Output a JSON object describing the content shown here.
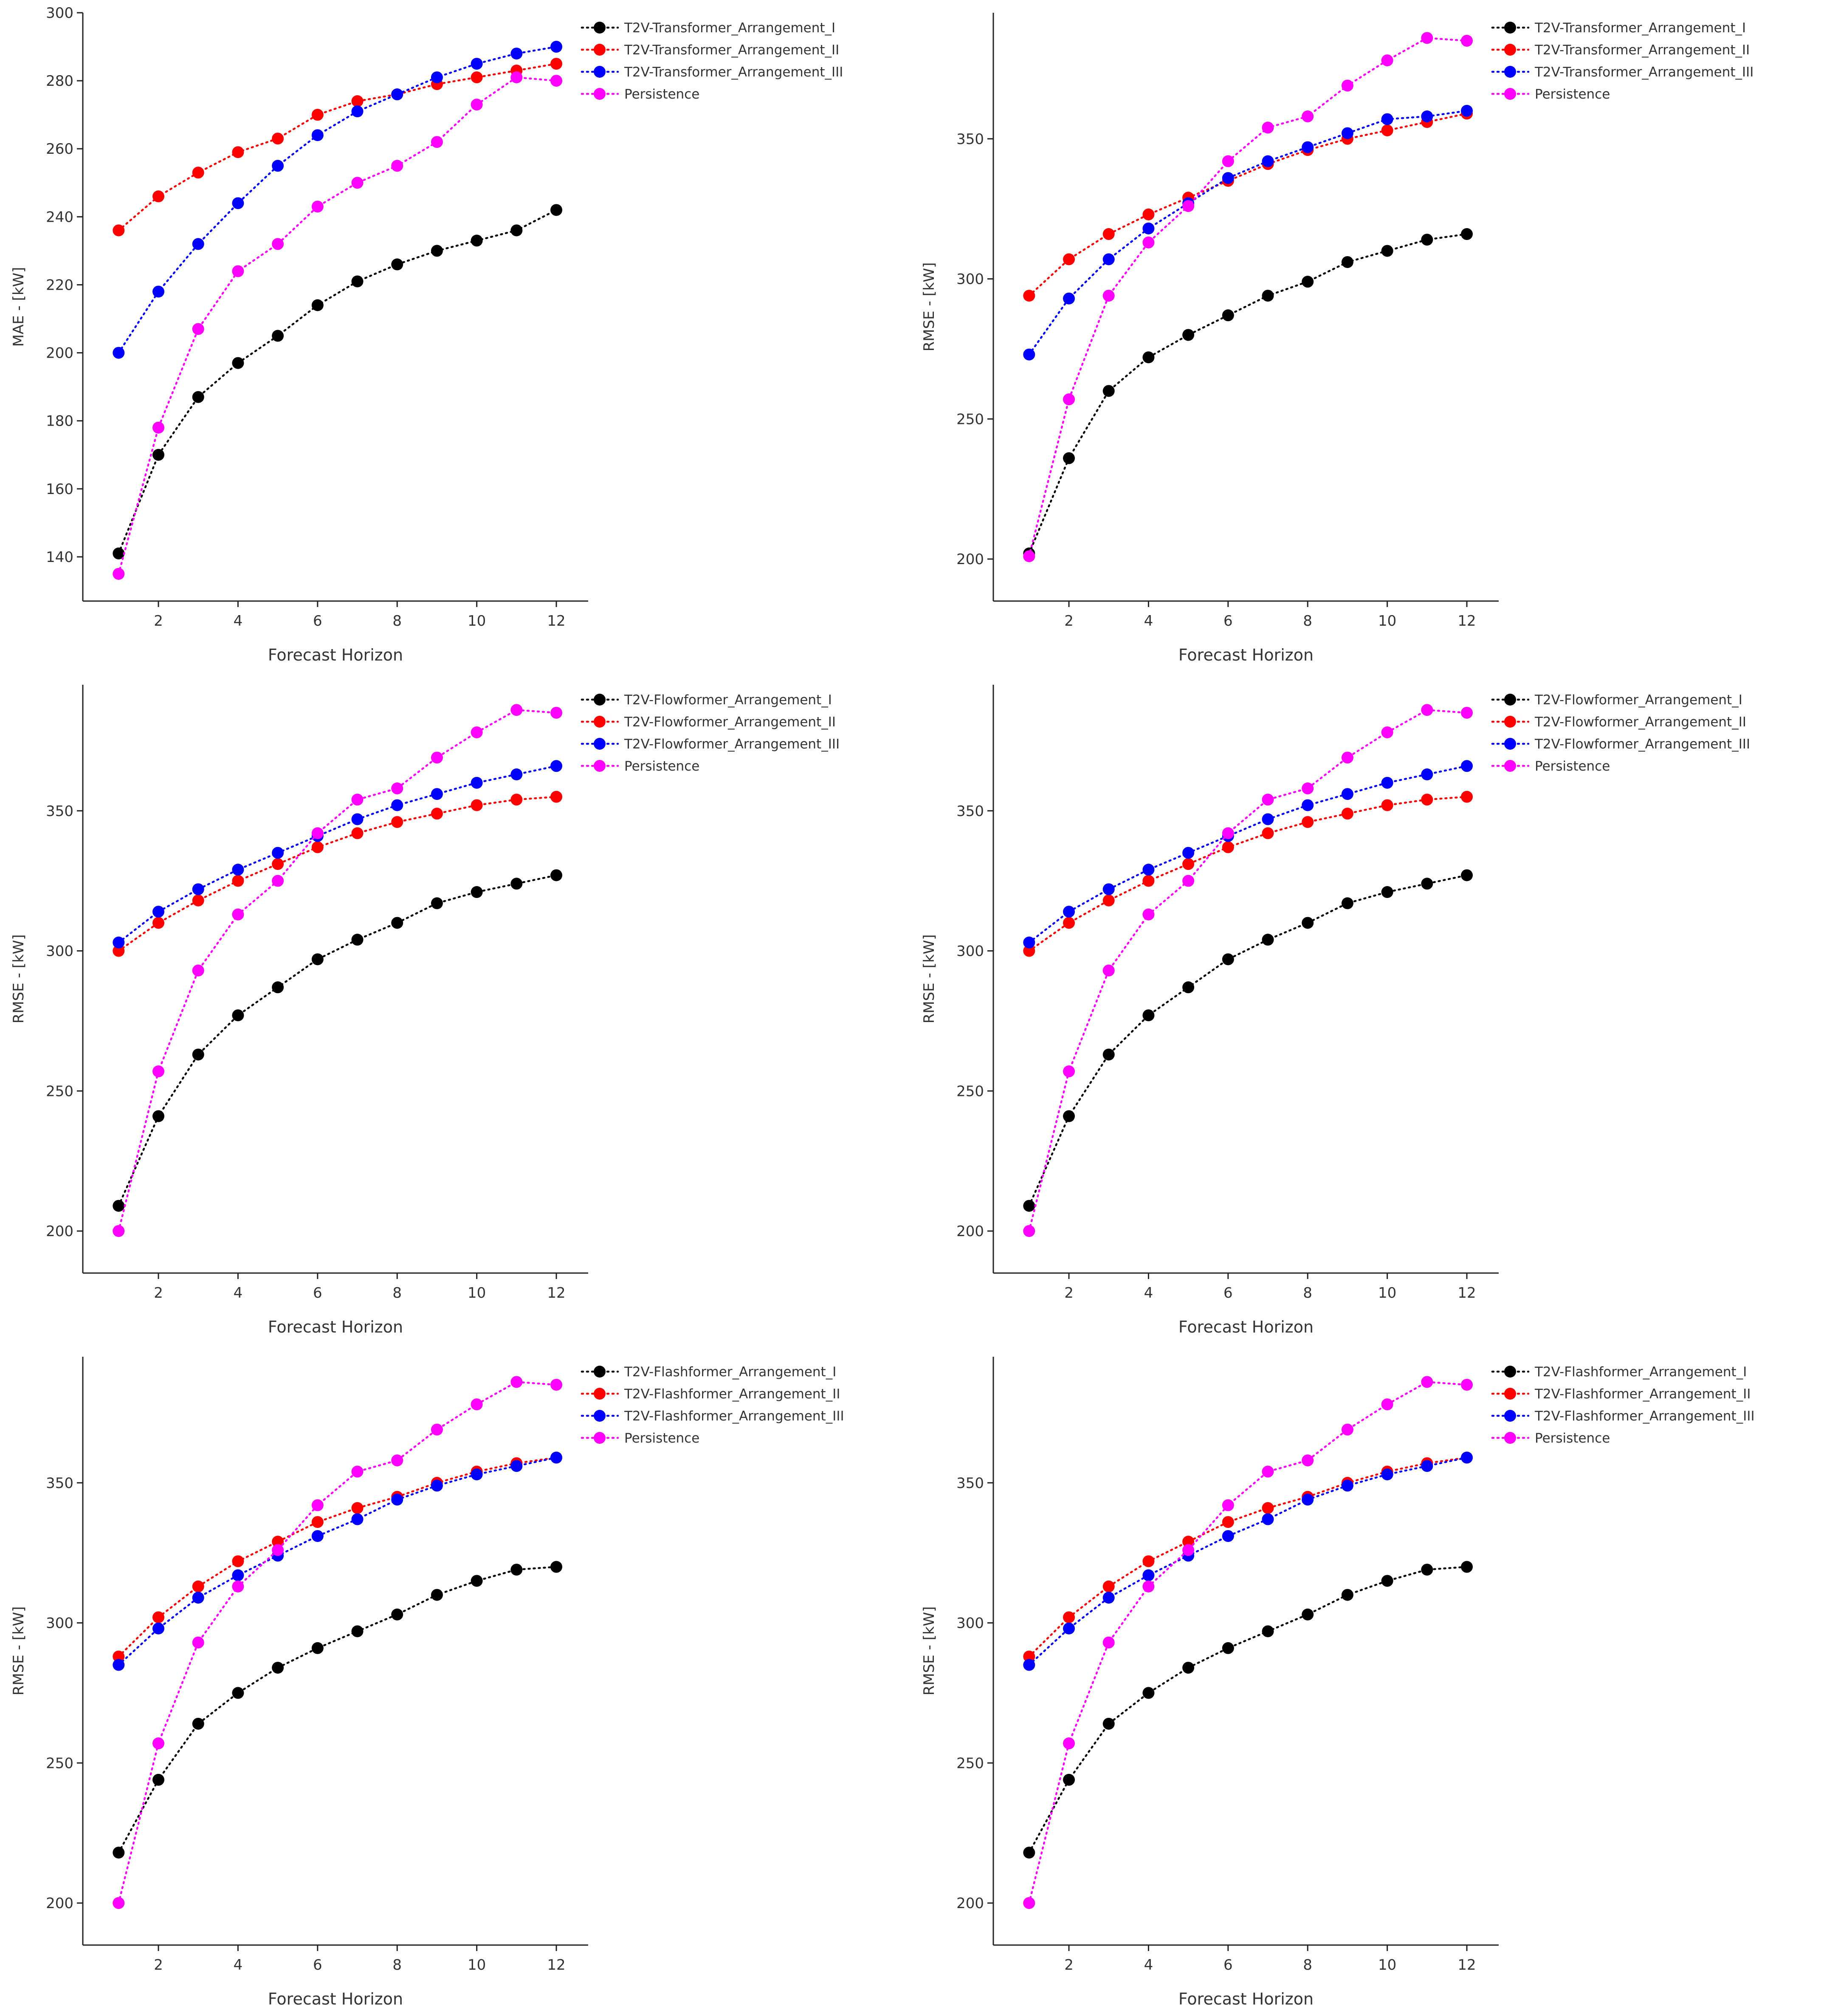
{
  "colors": {
    "T2V-Transformer_Arrangement_I": "#000000",
    "T2V-Transformer_Arrangement_II": "#ff0000",
    "T2V-Transformer_Arrangement_III": "#0000ff",
    "T2V-Flowformer_Arrangement_I": "#000000",
    "T2V-Flowformer_Arrangement_II": "#ff0000",
    "T2V-Flowformer_Arrangement_III": "#0000ff",
    "T2V-Flashformer_Arrangement_I": "#000000",
    "T2V-Flashformer_Arrangement_II": "#ff0000",
    "T2V-Flashformer_Arrangement_III": "#0000ff",
    "Persistence": "#ff00ff"
  },
  "chart_data": [
    {
      "type": "line",
      "xlabel": "Forecast Horizon",
      "ylabel": "MAE - [kW]",
      "xlim": [
        0.1,
        12.8
      ],
      "ylim": [
        127,
        300
      ],
      "xticks": [
        2,
        4,
        6,
        8,
        10,
        12
      ],
      "yticks": [
        140,
        160,
        180,
        200,
        220,
        240,
        260,
        280,
        300
      ],
      "legend_position": "top-right",
      "x": [
        1,
        2,
        3,
        4,
        5,
        6,
        7,
        8,
        9,
        10,
        11,
        12
      ],
      "series": [
        {
          "name": "T2V-Transformer_Arrangement_I",
          "values": [
            141,
            170,
            187,
            197,
            205,
            214,
            221,
            226,
            230,
            233,
            236,
            242
          ]
        },
        {
          "name": "T2V-Transformer_Arrangement_II",
          "values": [
            236,
            246,
            253,
            259,
            263,
            270,
            274,
            276,
            279,
            281,
            283,
            285
          ]
        },
        {
          "name": "T2V-Transformer_Arrangement_III",
          "values": [
            200,
            218,
            232,
            244,
            255,
            264,
            271,
            276,
            281,
            285,
            288,
            290
          ]
        },
        {
          "name": "Persistence",
          "values": [
            135,
            178,
            207,
            224,
            232,
            243,
            250,
            255,
            262,
            273,
            281,
            280
          ]
        }
      ]
    },
    {
      "type": "line",
      "xlabel": "Forecast Horizon",
      "ylabel": "RMSE - [kW]",
      "xlim": [
        0.1,
        12.8
      ],
      "ylim": [
        185,
        395
      ],
      "xticks": [
        2,
        4,
        6,
        8,
        10,
        12
      ],
      "yticks": [
        200,
        250,
        300,
        350
      ],
      "legend_position": "top-right",
      "x": [
        1,
        2,
        3,
        4,
        5,
        6,
        7,
        8,
        9,
        10,
        11,
        12
      ],
      "series": [
        {
          "name": "T2V-Transformer_Arrangement_I",
          "values": [
            202,
            236,
            260,
            272,
            280,
            287,
            294,
            299,
            306,
            310,
            314,
            316
          ]
        },
        {
          "name": "T2V-Transformer_Arrangement_II",
          "values": [
            294,
            307,
            316,
            323,
            329,
            335,
            341,
            346,
            350,
            353,
            356,
            359
          ]
        },
        {
          "name": "T2V-Transformer_Arrangement_III",
          "values": [
            273,
            293,
            307,
            318,
            327,
            336,
            342,
            347,
            352,
            357,
            358,
            360
          ]
        },
        {
          "name": "Persistence",
          "values": [
            201,
            257,
            294,
            313,
            326,
            342,
            354,
            358,
            369,
            378,
            386,
            385
          ]
        }
      ]
    },
    {
      "type": "line",
      "xlabel": "Forecast Horizon",
      "ylabel": "RMSE - [kW]",
      "xlim": [
        0.1,
        12.8
      ],
      "ylim": [
        185,
        395
      ],
      "xticks": [
        2,
        4,
        6,
        8,
        10,
        12
      ],
      "yticks": [
        200,
        250,
        300,
        350
      ],
      "legend_position": "top-right",
      "x": [
        1,
        2,
        3,
        4,
        5,
        6,
        7,
        8,
        9,
        10,
        11,
        12
      ],
      "series": [
        {
          "name": "T2V-Flowformer_Arrangement_I",
          "values": [
            209,
            241,
            263,
            277,
            287,
            297,
            304,
            310,
            317,
            321,
            324,
            327
          ]
        },
        {
          "name": "T2V-Flowformer_Arrangement_II",
          "values": [
            300,
            310,
            318,
            325,
            331,
            337,
            342,
            346,
            349,
            352,
            354,
            355
          ]
        },
        {
          "name": "T2V-Flowformer_Arrangement_III",
          "values": [
            303,
            314,
            322,
            329,
            335,
            341,
            347,
            352,
            356,
            360,
            363,
            366
          ]
        },
        {
          "name": "Persistence",
          "values": [
            200,
            257,
            293,
            313,
            325,
            342,
            354,
            358,
            369,
            378,
            386,
            385
          ]
        }
      ]
    },
    {
      "type": "line",
      "xlabel": "Forecast Horizon",
      "ylabel": "RMSE - [kW]",
      "xlim": [
        0.1,
        12.8
      ],
      "ylim": [
        185,
        395
      ],
      "xticks": [
        2,
        4,
        6,
        8,
        10,
        12
      ],
      "yticks": [
        200,
        250,
        300,
        350
      ],
      "legend_position": "top-right",
      "x": [
        1,
        2,
        3,
        4,
        5,
        6,
        7,
        8,
        9,
        10,
        11,
        12
      ],
      "series": [
        {
          "name": "T2V-Flowformer_Arrangement_I",
          "values": [
            209,
            241,
            263,
            277,
            287,
            297,
            304,
            310,
            317,
            321,
            324,
            327
          ]
        },
        {
          "name": "T2V-Flowformer_Arrangement_II",
          "values": [
            300,
            310,
            318,
            325,
            331,
            337,
            342,
            346,
            349,
            352,
            354,
            355
          ]
        },
        {
          "name": "T2V-Flowformer_Arrangement_III",
          "values": [
            303,
            314,
            322,
            329,
            335,
            341,
            347,
            352,
            356,
            360,
            363,
            366
          ]
        },
        {
          "name": "Persistence",
          "values": [
            200,
            257,
            293,
            313,
            325,
            342,
            354,
            358,
            369,
            378,
            386,
            385
          ]
        }
      ]
    },
    {
      "type": "line",
      "xlabel": "Forecast Horizon",
      "ylabel": "RMSE - [kW]",
      "xlim": [
        0.1,
        12.8
      ],
      "ylim": [
        185,
        395
      ],
      "xticks": [
        2,
        4,
        6,
        8,
        10,
        12
      ],
      "yticks": [
        200,
        250,
        300,
        350
      ],
      "legend_position": "top-right",
      "x": [
        1,
        2,
        3,
        4,
        5,
        6,
        7,
        8,
        9,
        10,
        11,
        12
      ],
      "series": [
        {
          "name": "T2V-Flashformer_Arrangement_I",
          "values": [
            218,
            244,
            264,
            275,
            284,
            291,
            297,
            303,
            310,
            315,
            319,
            320
          ]
        },
        {
          "name": "T2V-Flashformer_Arrangement_II",
          "values": [
            288,
            302,
            313,
            322,
            329,
            336,
            341,
            345,
            350,
            354,
            357,
            359
          ]
        },
        {
          "name": "T2V-Flashformer_Arrangement_III",
          "values": [
            285,
            298,
            309,
            317,
            324,
            331,
            337,
            344,
            349,
            353,
            356,
            359
          ]
        },
        {
          "name": "Persistence",
          "values": [
            200,
            257,
            293,
            313,
            326,
            342,
            354,
            358,
            369,
            378,
            386,
            385
          ]
        }
      ]
    },
    {
      "type": "line",
      "xlabel": "Forecast Horizon",
      "ylabel": "RMSE - [kW]",
      "xlim": [
        0.1,
        12.8
      ],
      "ylim": [
        185,
        395
      ],
      "xticks": [
        2,
        4,
        6,
        8,
        10,
        12
      ],
      "yticks": [
        200,
        250,
        300,
        350
      ],
      "legend_position": "top-right",
      "x": [
        1,
        2,
        3,
        4,
        5,
        6,
        7,
        8,
        9,
        10,
        11,
        12
      ],
      "series": [
        {
          "name": "T2V-Flashformer_Arrangement_I",
          "values": [
            218,
            244,
            264,
            275,
            284,
            291,
            297,
            303,
            310,
            315,
            319,
            320
          ]
        },
        {
          "name": "T2V-Flashformer_Arrangement_II",
          "values": [
            288,
            302,
            313,
            322,
            329,
            336,
            341,
            345,
            350,
            354,
            357,
            359
          ]
        },
        {
          "name": "T2V-Flashformer_Arrangement_III",
          "values": [
            285,
            298,
            309,
            317,
            324,
            331,
            337,
            344,
            349,
            353,
            356,
            359
          ]
        },
        {
          "name": "Persistence",
          "values": [
            200,
            257,
            293,
            313,
            326,
            342,
            354,
            358,
            369,
            378,
            386,
            385
          ]
        }
      ]
    }
  ]
}
